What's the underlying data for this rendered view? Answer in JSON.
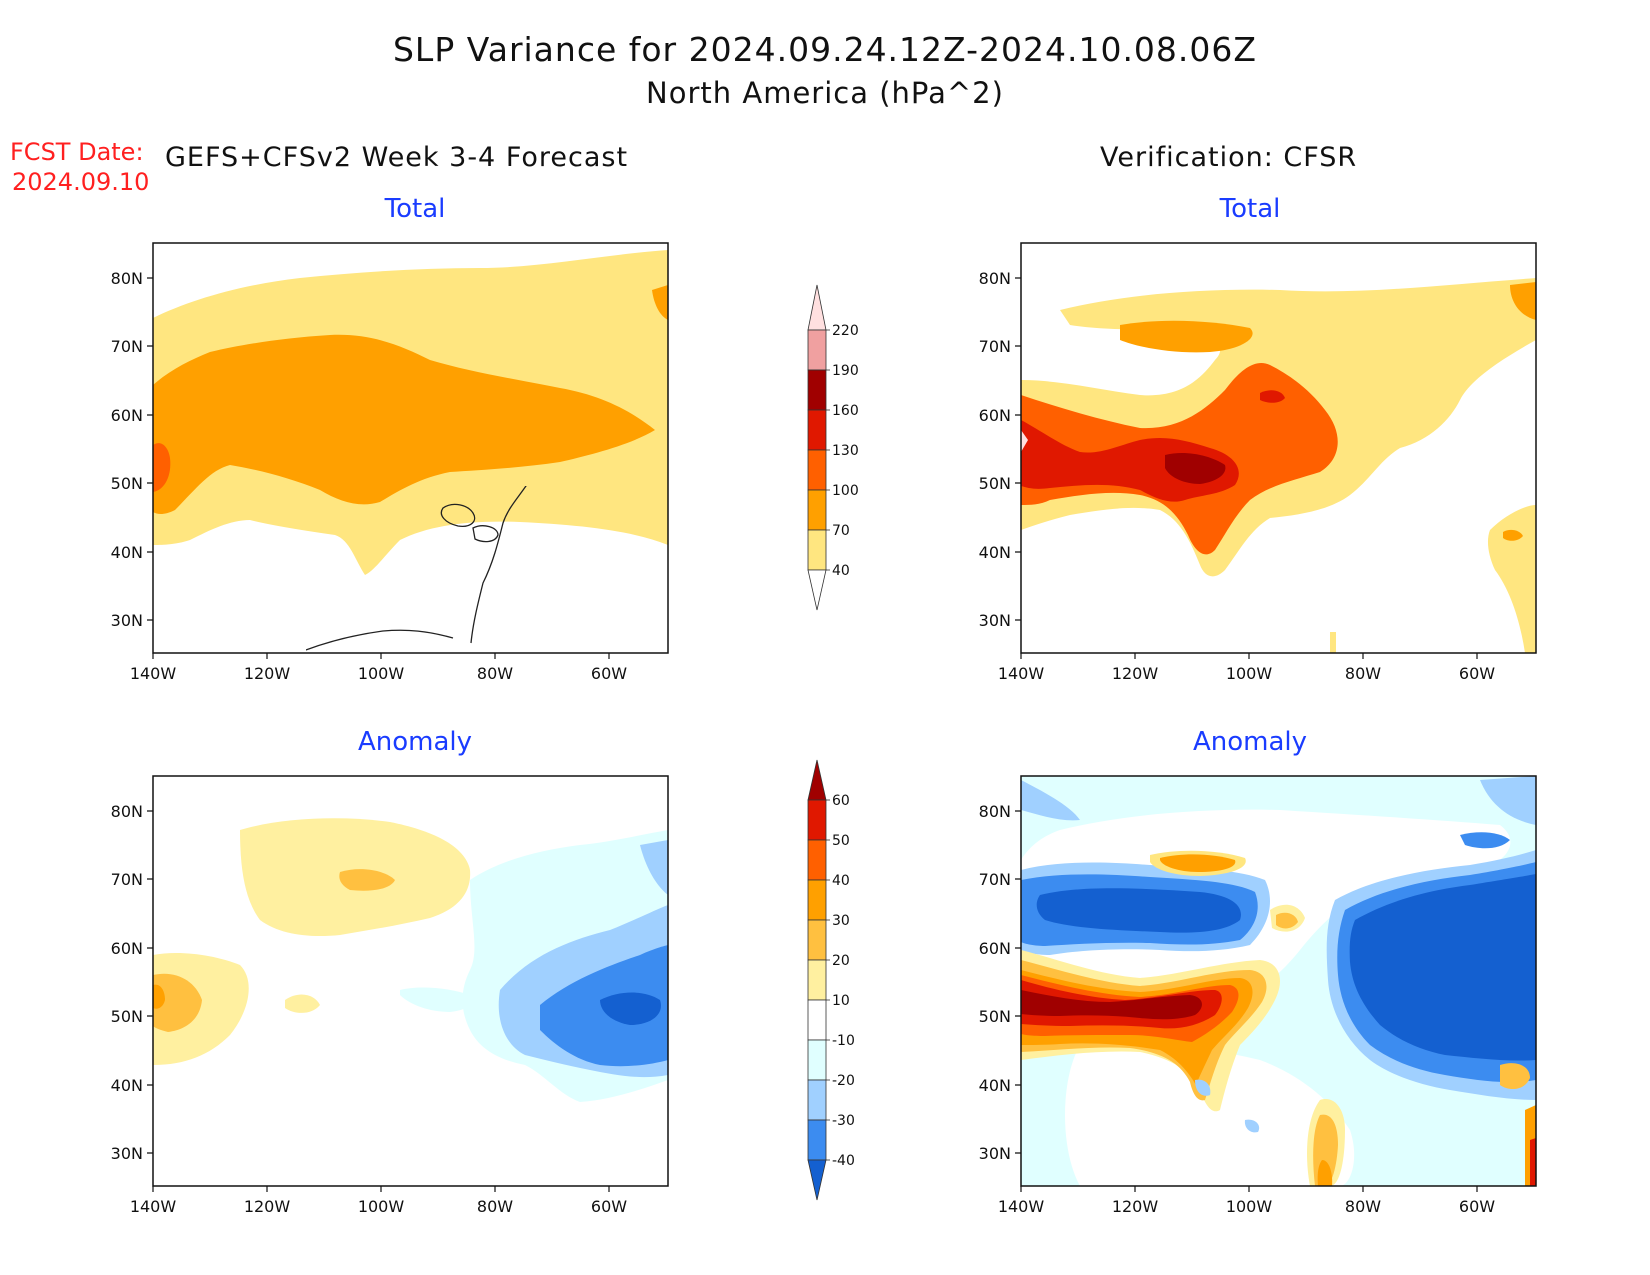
{
  "title": "SLP Variance for 2024.09.24.12Z-2024.10.08.06Z",
  "subtitle": "North America (hPa^2)",
  "forecast_date_label": "FCST Date:",
  "forecast_date": "2024.09.10",
  "left_heading": "GEFS+CFSv2 Week 3-4 Forecast",
  "right_heading": "Verification: CFSR",
  "panels": [
    {
      "title": "Total"
    },
    {
      "title": "Total"
    },
    {
      "title": "Anomaly"
    },
    {
      "title": "Anomaly"
    }
  ],
  "map_axes": {
    "lat_labels": [
      "80N",
      "70N",
      "60N",
      "50N",
      "40N",
      "30N"
    ],
    "lon_labels": [
      "140W",
      "120W",
      "100W",
      "80W",
      "60W"
    ]
  },
  "total_colorbar": {
    "labels": [
      "40",
      "70",
      "100",
      "130",
      "160",
      "190",
      "220"
    ],
    "colors": [
      "#ffe680",
      "#ffa000",
      "#ff6000",
      "#e01800",
      "#a00000",
      "#f0a0a0",
      "#ffe0e0"
    ]
  },
  "anomaly_colorbar": {
    "labels": [
      "-40",
      "-30",
      "-20",
      "-10",
      "10",
      "20",
      "30",
      "40",
      "50",
      "60"
    ],
    "colors": [
      "#1460d0",
      "#3c8cf0",
      "#a0d0ff",
      "#e0ffff",
      "#ffffff",
      "#fff0a0",
      "#ffc040",
      "#ffa000",
      "#ff6000",
      "#e01800",
      "#a00000"
    ]
  },
  "colors": {
    "title_text": "#111111",
    "fcst_text": "#ff2020",
    "panel_title": "#1a3cff"
  }
}
